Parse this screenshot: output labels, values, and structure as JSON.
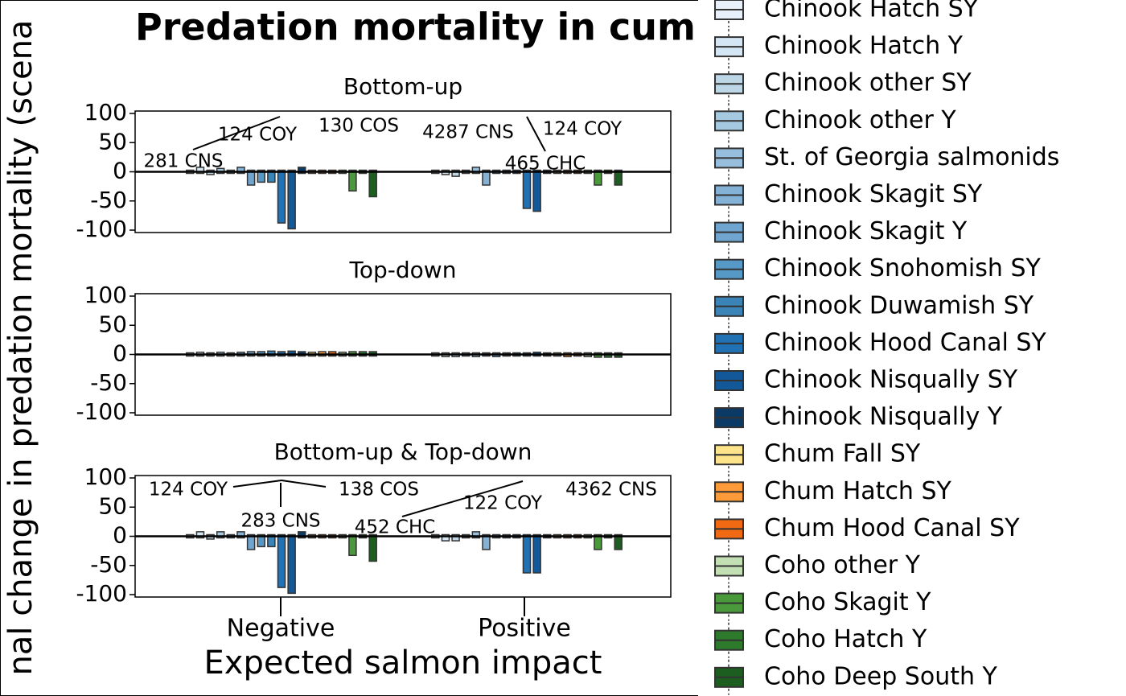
{
  "title": "Predation mortality in cumulative scenario",
  "y_axis_title": "nal change in predation mortality (scena",
  "x_axis": {
    "title": "Expected salmon impact",
    "categories": [
      "Negative",
      "Positive"
    ]
  },
  "legend": {
    "series": [
      {
        "name": "Chinook Hatch SY",
        "color": "#e8f1fa"
      },
      {
        "name": "Chinook Hatch Y",
        "color": "#d4e6f3"
      },
      {
        "name": "Chinook other SY",
        "color": "#bdd7e7"
      },
      {
        "name": "Chinook other Y",
        "color": "#a6c9e2"
      },
      {
        "name": "St. of Georgia salmonids",
        "color": "#97bedc"
      },
      {
        "name": "Chinook Skagit SY",
        "color": "#84b2d6"
      },
      {
        "name": "Chinook Skagit Y",
        "color": "#6fa5cf"
      },
      {
        "name": "Chinook Snohomish SY",
        "color": "#5698c6"
      },
      {
        "name": "Chinook Duwamish SY",
        "color": "#3a84b8"
      },
      {
        "name": "Chinook Hood Canal SY",
        "color": "#2171b5"
      },
      {
        "name": "Chinook Nisqually SY",
        "color": "#13599a"
      },
      {
        "name": "Chinook Nisqually Y",
        "color": "#0b3a66"
      },
      {
        "name": "Chum Fall SY",
        "color": "#fde38a"
      },
      {
        "name": "Chum Hatch SY",
        "color": "#fd9a3a"
      },
      {
        "name": "Chum Hood Canal SY",
        "color": "#f16913"
      },
      {
        "name": "Coho other Y",
        "color": "#c3dfb4"
      },
      {
        "name": "Coho Skagit Y",
        "color": "#4a9a3c"
      },
      {
        "name": "Coho Hatch Y",
        "color": "#2d7a2d"
      },
      {
        "name": "Coho Deep South Y",
        "color": "#1b5e20"
      }
    ]
  },
  "chart_data": [
    {
      "type": "box",
      "title": "Bottom-up",
      "ylim": [
        -100,
        100
      ],
      "yticks": [
        100,
        50,
        0,
        -50,
        -100
      ],
      "annotations": [
        "281 CNS",
        "124 COY",
        "130 COS",
        "4287 CNS",
        "124 COY",
        "465 CHC"
      ],
      "series": [
        [
          0,
          0
        ],
        [
          5,
          -2
        ],
        [
          -2,
          -5
        ],
        [
          3,
          0
        ],
        [
          0,
          5
        ],
        [
          5,
          -20
        ],
        [
          -20,
          0
        ],
        [
          -15,
          0
        ],
        [
          -15,
          0
        ],
        [
          -85,
          -60
        ],
        [
          -95,
          -65
        ],
        [
          5,
          0
        ],
        [
          0,
          0
        ],
        [
          0,
          0
        ],
        [
          0,
          0
        ],
        [
          0,
          0
        ],
        [
          -30,
          -20
        ],
        [
          0,
          0
        ],
        [
          -40,
          -20
        ]
      ]
    },
    {
      "type": "box",
      "title": "Top-down",
      "ylim": [
        -100,
        100
      ],
      "yticks": [
        100,
        50,
        0,
        -50,
        -100
      ],
      "annotations": [],
      "series": [
        [
          0,
          0
        ],
        [
          1,
          -1
        ],
        [
          0,
          -1
        ],
        [
          1,
          0
        ],
        [
          0,
          -1
        ],
        [
          1,
          0
        ],
        [
          2,
          -1
        ],
        [
          2,
          0
        ],
        [
          3,
          0
        ],
        [
          2,
          0
        ],
        [
          3,
          1
        ],
        [
          2,
          0
        ],
        [
          1,
          0
        ],
        [
          2,
          -1
        ],
        [
          2,
          0
        ],
        [
          1,
          -1
        ],
        [
          2,
          -2
        ],
        [
          2,
          -2
        ],
        [
          2,
          -2
        ]
      ]
    },
    {
      "type": "box",
      "title": "Bottom-up & Top-down",
      "ylim": [
        -100,
        100
      ],
      "yticks": [
        100,
        50,
        0,
        -50,
        -100
      ],
      "annotations": [
        "124 COY",
        "138 COS",
        "283 CNS",
        "452 CHC",
        "122 COY",
        "4362 CNS"
      ],
      "series": [
        [
          0,
          0
        ],
        [
          5,
          -5
        ],
        [
          -2,
          -5
        ],
        [
          5,
          0
        ],
        [
          0,
          5
        ],
        [
          5,
          -20
        ],
        [
          -20,
          0
        ],
        [
          -15,
          0
        ],
        [
          -15,
          0
        ],
        [
          -85,
          -60
        ],
        [
          -95,
          -60
        ],
        [
          5,
          0
        ],
        [
          0,
          0
        ],
        [
          0,
          0
        ],
        [
          0,
          0
        ],
        [
          0,
          0
        ],
        [
          -30,
          -20
        ],
        [
          0,
          0
        ],
        [
          -40,
          -20
        ]
      ]
    }
  ]
}
